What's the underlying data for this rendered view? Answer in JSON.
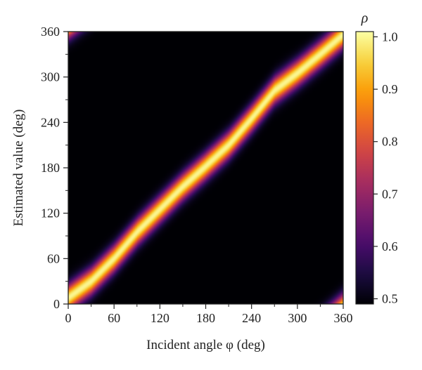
{
  "chart_data": {
    "type": "heatmap",
    "title": "",
    "xlabel": "Incident angle φ (deg)",
    "ylabel": "Estimated value (deg)",
    "x_range": [
      0,
      360
    ],
    "y_range": [
      0,
      360
    ],
    "x_ticks": [
      0,
      60,
      120,
      180,
      240,
      300,
      360
    ],
    "y_ticks": [
      0,
      60,
      120,
      180,
      240,
      300,
      360
    ],
    "colorbar": {
      "label": "ρ",
      "range": [
        0.49,
        1.01
      ],
      "ticks": [
        0.5,
        0.6,
        0.7,
        0.8,
        0.9,
        1.0
      ],
      "tick_labels": [
        "0.5",
        "0.6",
        "0.7",
        "0.8",
        "0.9",
        "1.0"
      ],
      "colormap": [
        "#000004",
        "#1b0c41",
        "#4a0c6b",
        "#781c6d",
        "#a52c60",
        "#cf4446",
        "#ed6925",
        "#fb9b06",
        "#f7d13d",
        "#fcffa4"
      ]
    },
    "ridge": {
      "description_values": "estimated value vs incident angle (degrees)",
      "points": [
        [
          0,
          8
        ],
        [
          30,
          30
        ],
        [
          60,
          60
        ],
        [
          90,
          95
        ],
        [
          120,
          125
        ],
        [
          150,
          155
        ],
        [
          180,
          182
        ],
        [
          210,
          210
        ],
        [
          240,
          245
        ],
        [
          270,
          282
        ],
        [
          300,
          305
        ],
        [
          330,
          330
        ],
        [
          360,
          356
        ]
      ],
      "peak": 1.0,
      "floor": 0.49,
      "halfwidth_deg": 26
    },
    "grid": false,
    "colorbar_position": "right"
  }
}
